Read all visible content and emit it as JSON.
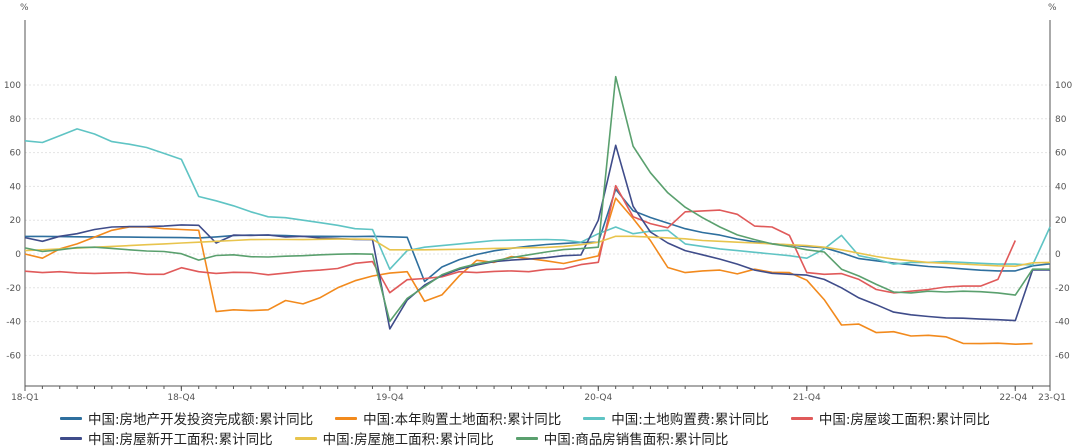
{
  "chart_data": {
    "type": "line",
    "title": "",
    "y_unit_left": "%",
    "y_unit_right": "%",
    "ylim": [
      -62,
      110
    ],
    "y_ticks": [
      -60,
      -40,
      -20,
      0,
      20,
      40,
      60,
      80,
      100
    ],
    "x_tick_labels": [
      {
        "i": 0,
        "label": "18-Q1"
      },
      {
        "i": 9,
        "label": "18-Q4"
      },
      {
        "i": 21,
        "label": "19-Q4"
      },
      {
        "i": 33,
        "label": "20-Q4"
      },
      {
        "i": 45,
        "label": "21-Q4"
      },
      {
        "i": 57,
        "label": "22-Q4"
      },
      {
        "i": 59,
        "label": "23-Q1"
      }
    ],
    "x_count": 60,
    "grid": true,
    "legend_position": "bottom",
    "series": [
      {
        "name": "中国:房地产开发投资完成额:累计同比",
        "color": "#2e6f9e",
        "values": [
          10.4,
          10.4,
          10.3,
          10.2,
          10.1,
          10.1,
          10.0,
          9.9,
          9.8,
          9.7,
          9.5,
          10.1,
          10.9,
          11.2,
          11.1,
          10.9,
          10.5,
          10.5,
          10.4,
          10.3,
          10.5,
          10.2,
          9.9,
          -16.3,
          -7.7,
          -3.3,
          -0.3,
          1.9,
          3.4,
          4.6,
          5.6,
          6.3,
          6.8,
          7.0,
          38.3,
          25.6,
          21.6,
          18.3,
          15.0,
          12.7,
          11.2,
          8.9,
          7.2,
          6.1,
          5.3,
          4.4,
          3.7,
          0.7,
          -2.7,
          -4.0,
          -5.4,
          -6.4,
          -7.4,
          -8.0,
          -8.8,
          -9.6,
          -10.0,
          -10.0,
          -7.0,
          -5.8
        ]
      },
      {
        "name": "中国:本年购置土地面积:累计同比",
        "color": "#f28a1d",
        "values": [
          0.0,
          -2.5,
          3.0,
          6.0,
          10.0,
          14.0,
          16.0,
          16.0,
          15.0,
          14.5,
          14.0,
          -34.1,
          -33.0,
          -33.5,
          -33.0,
          -27.5,
          -29.5,
          -25.8,
          -20.0,
          -15.8,
          -13.0,
          -11.3,
          -10.5,
          -28.0,
          -24.2,
          -12.9,
          -3.7,
          -5.0,
          -1.5,
          -2.7,
          -4.0,
          -5.6,
          -3.4,
          -1.1,
          33.0,
          21.0,
          8.0,
          -8.0,
          -11.0,
          -10.0,
          -9.5,
          -11.8,
          -9.0,
          -10.8,
          -11.0,
          -15.5,
          -27.0,
          -42.0,
          -41.5,
          -46.5,
          -46.0,
          -48.5,
          -48.1,
          -49.0,
          -52.9,
          -53.0,
          -52.8,
          -53.4,
          -53.0,
          null
        ]
      },
      {
        "name": "中国:土地购置费:累计同比",
        "color": "#5fc4c4",
        "values": [
          67.0,
          66.0,
          70.0,
          74.0,
          71.0,
          66.5,
          65.0,
          63.0,
          59.5,
          56.0,
          34.0,
          31.5,
          28.5,
          25.0,
          22.0,
          21.5,
          20.0,
          18.5,
          17.0,
          15.0,
          14.5,
          -9.0,
          2.0,
          4.0,
          5.0,
          6.0,
          7.0,
          8.0,
          8.2,
          8.4,
          8.6,
          8.2,
          7.0,
          12.0,
          16.0,
          12.0,
          13.5,
          14.0,
          6.0,
          4.5,
          3.0,
          2.0,
          1.0,
          0.0,
          -1.0,
          -2.5,
          3.0,
          11.0,
          -1.0,
          -3.0,
          -6.0,
          -5.0,
          -5.0,
          -4.5,
          -5.0,
          -5.5,
          -6.0,
          -6.0,
          -6.5,
          16.0
        ]
      },
      {
        "name": "中国:房屋竣工面积:累计同比",
        "color": "#e05a5a",
        "values": [
          -10.2,
          -11.0,
          -10.5,
          -11.2,
          -11.5,
          -11.2,
          -11.0,
          -12.0,
          -12.0,
          -8.1,
          -10.5,
          -11.5,
          -10.8,
          -11.0,
          -12.3,
          -11.3,
          -10.2,
          -9.5,
          -8.6,
          -5.5,
          -4.5,
          -22.9,
          -15.2,
          -14.5,
          -13.5,
          -10.5,
          -11.0,
          -10.3,
          -10.0,
          -10.5,
          -9.1,
          -8.8,
          -6.3,
          -4.9,
          40.4,
          22.0,
          18.0,
          15.5,
          25.0,
          25.5,
          26.0,
          23.5,
          16.5,
          16.0,
          11.0,
          -11.0,
          -12.0,
          -11.6,
          -15.0,
          -21.0,
          -23.0,
          -22.0,
          -21.0,
          -19.5,
          -19.0,
          -19.0,
          -15.0,
          8.0,
          null,
          null
        ]
      },
      {
        "name": "中国:房屋新开工面积:累计同比",
        "color": "#3f4c8a",
        "values": [
          9.7,
          7.5,
          10.5,
          12.0,
          14.5,
          16.0,
          16.2,
          16.2,
          16.5,
          17.2,
          17.0,
          6.5,
          11.2,
          11.0,
          11.3,
          10.1,
          10.5,
          9.5,
          9.1,
          8.6,
          8.5,
          -44.3,
          -27.2,
          -18.4,
          -12.8,
          -9.0,
          -6.5,
          -4.5,
          -3.6,
          -3.0,
          -2.2,
          -1.0,
          -0.6,
          20.0,
          64.3,
          28.2,
          13.0,
          6.5,
          2.0,
          -0.5,
          -3.0,
          -6.0,
          -9.5,
          -11.4,
          -12.0,
          -12.5,
          -15.0,
          -20.0,
          -26.0,
          -30.0,
          -34.4,
          -36.0,
          -37.0,
          -37.8,
          -38.0,
          -38.5,
          -38.9,
          -39.4,
          -9.4,
          -9.4
        ]
      },
      {
        "name": "中国:房屋施工面积:累计同比",
        "color": "#e8c44d",
        "values": [
          2.0,
          2.5,
          3.0,
          3.5,
          4.0,
          4.5,
          5.0,
          5.5,
          6.0,
          6.5,
          7.0,
          7.5,
          8.0,
          8.5,
          8.6,
          8.6,
          8.5,
          8.7,
          8.8,
          8.8,
          8.7,
          2.5,
          2.5,
          2.5,
          2.6,
          2.8,
          3.0,
          3.3,
          3.5,
          3.7,
          3.9,
          4.5,
          5.5,
          7.0,
          10.5,
          10.5,
          10.0,
          9.5,
          9.0,
          8.0,
          7.5,
          7.0,
          6.5,
          6.0,
          5.5,
          5.0,
          4.0,
          2.5,
          0.5,
          -1.5,
          -3.0,
          -4.0,
          -5.0,
          -5.5,
          -6.0,
          -6.5,
          -7.0,
          -7.2,
          -5.2,
          -5.0
        ]
      },
      {
        "name": "中国:商品房销售面积:累计同比",
        "color": "#5aa06e",
        "values": [
          3.6,
          1.5,
          2.5,
          3.8,
          4.0,
          3.3,
          2.5,
          1.8,
          1.5,
          0.2,
          -3.6,
          -0.9,
          -0.5,
          -1.6,
          -1.8,
          -1.3,
          -1.0,
          -0.5,
          -0.1,
          0.1,
          -0.1,
          -39.9,
          -26.3,
          -19.3,
          -12.3,
          -8.4,
          -5.8,
          -4.1,
          -2.2,
          -0.5,
          1.2,
          2.6,
          3.2,
          4.0,
          104.9,
          63.8,
          48.1,
          36.2,
          27.7,
          21.5,
          16.0,
          11.3,
          8.5,
          6.0,
          4.5,
          2.5,
          1.2,
          -9.0,
          -13.0,
          -18.0,
          -22.5,
          -23.0,
          -22.0,
          -22.5,
          -22.0,
          -22.3,
          -23.0,
          -24.3,
          -9.0,
          -9.0
        ]
      }
    ]
  }
}
